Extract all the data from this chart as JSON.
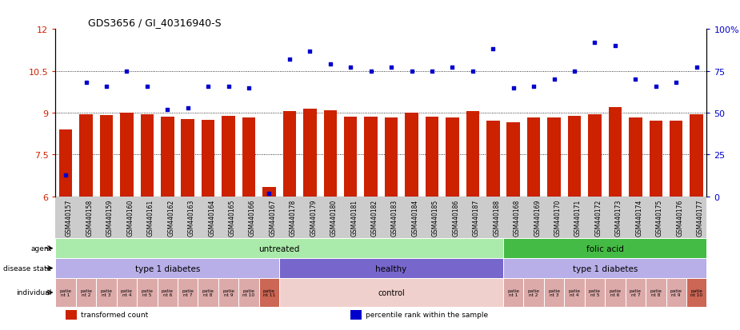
{
  "title": "GDS3656 / GI_40316940-S",
  "samples": [
    "GSM440157",
    "GSM440158",
    "GSM440159",
    "GSM440160",
    "GSM440161",
    "GSM440162",
    "GSM440163",
    "GSM440164",
    "GSM440165",
    "GSM440166",
    "GSM440167",
    "GSM440178",
    "GSM440179",
    "GSM440180",
    "GSM440181",
    "GSM440182",
    "GSM440183",
    "GSM440184",
    "GSM440185",
    "GSM440186",
    "GSM440187",
    "GSM440188",
    "GSM440168",
    "GSM440169",
    "GSM440170",
    "GSM440171",
    "GSM440172",
    "GSM440173",
    "GSM440174",
    "GSM440175",
    "GSM440176",
    "GSM440177"
  ],
  "bar_values": [
    8.4,
    8.95,
    8.92,
    9.0,
    8.95,
    8.85,
    8.78,
    8.75,
    8.88,
    8.82,
    6.35,
    9.05,
    9.15,
    9.1,
    8.85,
    8.85,
    8.82,
    9.0,
    8.85,
    8.82,
    9.05,
    8.72,
    8.65,
    8.82,
    8.82,
    8.88,
    8.95,
    9.2,
    8.82,
    8.72,
    8.72,
    8.95
  ],
  "dot_values_pct": [
    13,
    68,
    66,
    75,
    66,
    52,
    53,
    66,
    66,
    65,
    2,
    82,
    87,
    79,
    77,
    75,
    77,
    75,
    75,
    77,
    75,
    88,
    65,
    66,
    70,
    75,
    92,
    90,
    70,
    66,
    68,
    77
  ],
  "ylim_left": [
    6,
    12
  ],
  "ylim_right": [
    0,
    100
  ],
  "yticks_left": [
    6,
    7.5,
    9,
    10.5,
    12
  ],
  "yticks_right": [
    0,
    25,
    50,
    75,
    100
  ],
  "bar_color": "#cc2200",
  "dot_color": "#0000cc",
  "bg_color": "#ffffff",
  "tick_bg": "#cccccc",
  "agent_groups": [
    {
      "label": "untreated",
      "start": 0,
      "end": 22,
      "color": "#aaeaaa"
    },
    {
      "label": "folic acid",
      "start": 22,
      "end": 32,
      "color": "#44bb44"
    }
  ],
  "disease_groups": [
    {
      "label": "type 1 diabetes",
      "start": 0,
      "end": 11,
      "color": "#b8aee8"
    },
    {
      "label": "healthy",
      "start": 11,
      "end": 22,
      "color": "#7766cc"
    },
    {
      "label": "type 1 diabetes",
      "start": 22,
      "end": 32,
      "color": "#b8aee8"
    }
  ],
  "individual_groups": [
    {
      "label": "patie\nnt 1",
      "start": 0,
      "end": 1,
      "color": "#ddaaaa"
    },
    {
      "label": "patie\nnt 2",
      "start": 1,
      "end": 2,
      "color": "#ddaaaa"
    },
    {
      "label": "patie\nnt 3",
      "start": 2,
      "end": 3,
      "color": "#ddaaaa"
    },
    {
      "label": "patie\nnt 4",
      "start": 3,
      "end": 4,
      "color": "#ddaaaa"
    },
    {
      "label": "patie\nnt 5",
      "start": 4,
      "end": 5,
      "color": "#ddaaaa"
    },
    {
      "label": "patie\nnt 6",
      "start": 5,
      "end": 6,
      "color": "#ddaaaa"
    },
    {
      "label": "patie\nnt 7",
      "start": 6,
      "end": 7,
      "color": "#ddaaaa"
    },
    {
      "label": "patie\nnt 8",
      "start": 7,
      "end": 8,
      "color": "#ddaaaa"
    },
    {
      "label": "patie\nnt 9",
      "start": 8,
      "end": 9,
      "color": "#ddaaaa"
    },
    {
      "label": "patie\nnt 10",
      "start": 9,
      "end": 10,
      "color": "#ddaaaa"
    },
    {
      "label": "patie\nnt 11",
      "start": 10,
      "end": 11,
      "color": "#cc6655"
    },
    {
      "label": "control",
      "start": 11,
      "end": 22,
      "color": "#f0d0cc"
    },
    {
      "label": "patie\nnt 1",
      "start": 22,
      "end": 23,
      "color": "#ddaaaa"
    },
    {
      "label": "patie\nnt 2",
      "start": 23,
      "end": 24,
      "color": "#ddaaaa"
    },
    {
      "label": "patie\nnt 3",
      "start": 24,
      "end": 25,
      "color": "#ddaaaa"
    },
    {
      "label": "patie\nnt 4",
      "start": 25,
      "end": 26,
      "color": "#ddaaaa"
    },
    {
      "label": "patie\nnt 5",
      "start": 26,
      "end": 27,
      "color": "#ddaaaa"
    },
    {
      "label": "patie\nnt 6",
      "start": 27,
      "end": 28,
      "color": "#ddaaaa"
    },
    {
      "label": "patie\nnt 7",
      "start": 28,
      "end": 29,
      "color": "#ddaaaa"
    },
    {
      "label": "patie\nnt 8",
      "start": 29,
      "end": 30,
      "color": "#ddaaaa"
    },
    {
      "label": "patie\nnt 9",
      "start": 30,
      "end": 31,
      "color": "#ddaaaa"
    },
    {
      "label": "patie\nnt 10",
      "start": 31,
      "end": 32,
      "color": "#cc6655"
    }
  ],
  "legend_items": [
    {
      "label": "transformed count",
      "color": "#cc2200"
    },
    {
      "label": "percentile rank within the sample",
      "color": "#0000cc"
    }
  ],
  "row_labels": [
    "agent",
    "disease state",
    "individual"
  ]
}
